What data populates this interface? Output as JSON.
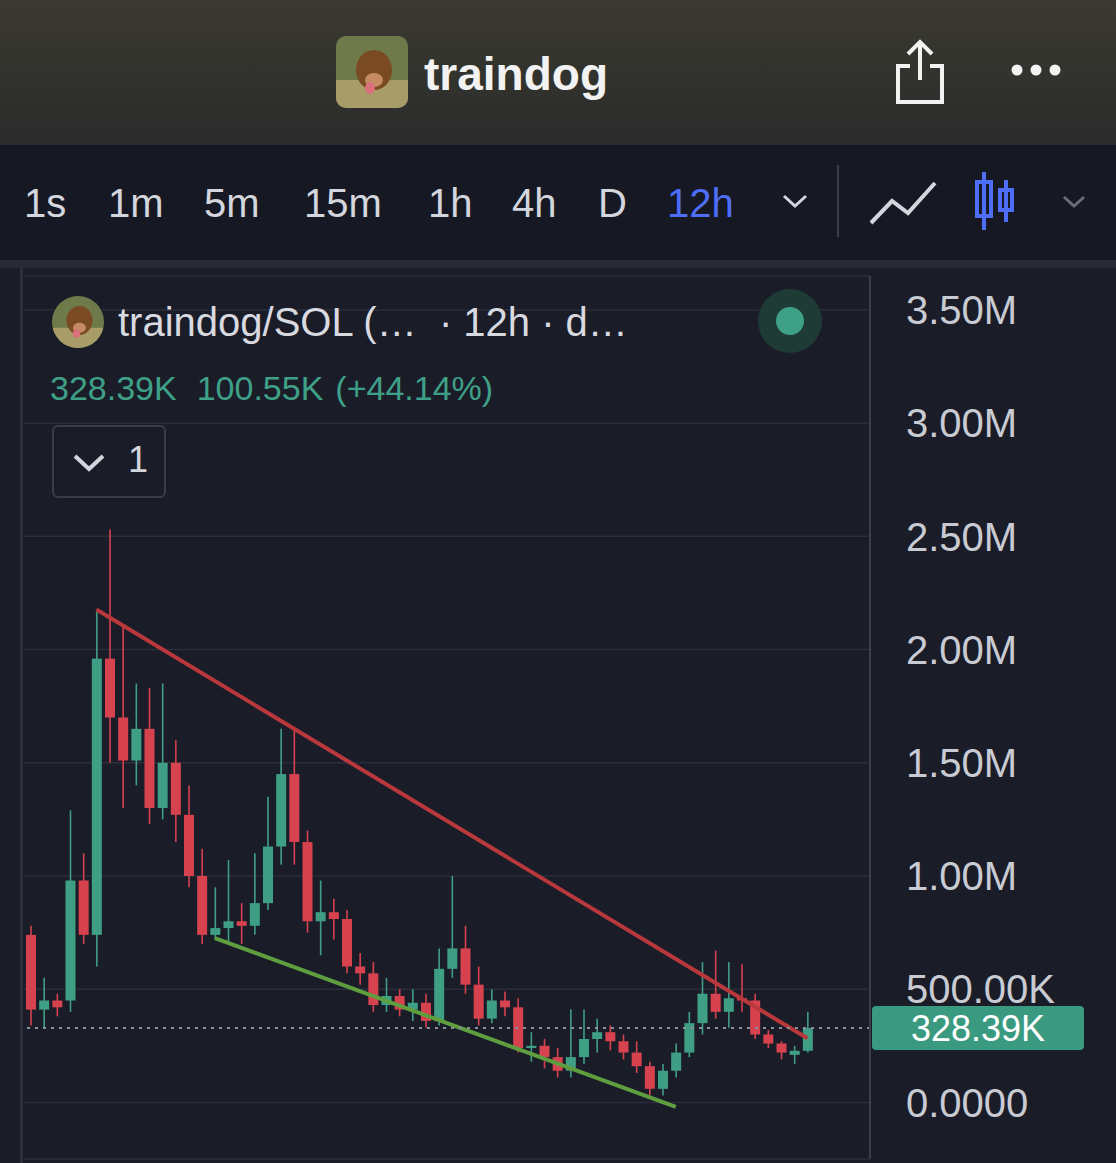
{
  "header": {
    "title": "traindog"
  },
  "timeframes": {
    "items": [
      "1s",
      "1m",
      "5m",
      "15m",
      "1h",
      "4h",
      "D",
      "12h"
    ],
    "selected": "12h"
  },
  "chart_data": {
    "type": "candlestick",
    "title": "traindog/SOL (…  · 12h · d…",
    "legend_values": [
      "328.39K",
      "100.55K",
      "(+44.14%)"
    ],
    "panel_toggle": "1",
    "categories": [
      null,
      null,
      null,
      null,
      null,
      null,
      null,
      null,
      null,
      null,
      null,
      null,
      null,
      null,
      null,
      null,
      null,
      null,
      null,
      null,
      null,
      null,
      null,
      null,
      null,
      null,
      null,
      null,
      null,
      null,
      null,
      null,
      null,
      null,
      null,
      null,
      null,
      null,
      null,
      null,
      null,
      null,
      null,
      null,
      null,
      null,
      null,
      null,
      null,
      null,
      null,
      null,
      null,
      null,
      null,
      null,
      null,
      null,
      null,
      null
    ],
    "open": [
      740000,
      410000,
      450000,
      450000,
      980000,
      740000,
      1960000,
      1700000,
      1510000,
      1650000,
      1300000,
      1500000,
      1270000,
      1000000,
      740000,
      770000,
      800000,
      780000,
      880000,
      1130000,
      1450000,
      1150000,
      800000,
      840000,
      810000,
      600000,
      570000,
      430000,
      470000,
      410000,
      440000,
      360000,
      590000,
      680000,
      520000,
      370000,
      450000,
      420000,
      240000,
      250000,
      200000,
      140000,
      200000,
      280000,
      310000,
      270000,
      220000,
      160000,
      60000,
      140000,
      220000,
      350000,
      480000,
      400000,
      460000,
      450000,
      300000,
      260000,
      210000,
      227840
    ],
    "high": [
      780000,
      550000,
      480000,
      1290000,
      1100000,
      2170000,
      2530000,
      2100000,
      1850000,
      1830000,
      1850000,
      1600000,
      1400000,
      1120000,
      950000,
      1070000,
      880000,
      1100000,
      1350000,
      1650000,
      1650000,
      1200000,
      980000,
      900000,
      850000,
      660000,
      620000,
      550000,
      500000,
      500000,
      480000,
      680000,
      1000000,
      780000,
      600000,
      500000,
      490000,
      460000,
      310000,
      280000,
      240000,
      410000,
      410000,
      370000,
      340000,
      300000,
      270000,
      180000,
      170000,
      260000,
      400000,
      620000,
      670000,
      620000,
      610000,
      480000,
      320000,
      270000,
      250000,
      400000
    ],
    "low": [
      340000,
      330000,
      380000,
      400000,
      700000,
      600000,
      1500000,
      1300000,
      1400000,
      1230000,
      1250000,
      1150000,
      950000,
      700000,
      720000,
      700000,
      700000,
      740000,
      850000,
      1050000,
      1050000,
      750000,
      650000,
      720000,
      570000,
      520000,
      400000,
      400000,
      380000,
      360000,
      330000,
      340000,
      550000,
      480000,
      340000,
      350000,
      380000,
      220000,
      180000,
      150000,
      110000,
      110000,
      170000,
      220000,
      230000,
      190000,
      130000,
      30000,
      30000,
      110000,
      200000,
      300000,
      370000,
      330000,
      400000,
      280000,
      240000,
      190000,
      170000,
      220000
    ],
    "close": [
      410000,
      450000,
      420000,
      980000,
      740000,
      1960000,
      1700000,
      1510000,
      1650000,
      1300000,
      1500000,
      1270000,
      1000000,
      740000,
      770000,
      800000,
      780000,
      880000,
      1130000,
      1450000,
      1150000,
      800000,
      840000,
      810000,
      600000,
      570000,
      430000,
      470000,
      410000,
      440000,
      360000,
      590000,
      680000,
      520000,
      370000,
      450000,
      420000,
      240000,
      250000,
      200000,
      140000,
      200000,
      280000,
      310000,
      270000,
      220000,
      160000,
      60000,
      140000,
      220000,
      350000,
      480000,
      400000,
      460000,
      450000,
      300000,
      260000,
      220000,
      227840,
      328390
    ],
    "colors": [
      "#d6424e",
      "#3f9f85",
      "#d6424e",
      "#3f9f85",
      "#d6424e",
      "#3f9f85",
      "#d6424e",
      "#d6424e",
      "#3f9f85",
      "#d6424e",
      "#3f9f85",
      "#d6424e",
      "#d6424e",
      "#d6424e",
      "#3f9f85",
      "#3f9f85",
      "#d6424e",
      "#3f9f85",
      "#3f9f85",
      "#3f9f85",
      "#d6424e",
      "#d6424e",
      "#3f9f85",
      "#d6424e",
      "#d6424e",
      "#d6424e",
      "#d6424e",
      "#3f9f85",
      "#d6424e",
      "#3f9f85",
      "#d6424e",
      "#3f9f85",
      "#3f9f85",
      "#d6424e",
      "#d6424e",
      "#3f9f85",
      "#d6424e",
      "#d6424e",
      "#3f9f85",
      "#d6424e",
      "#d6424e",
      "#3f9f85",
      "#3f9f85",
      "#3f9f85",
      "#d6424e",
      "#d6424e",
      "#d6424e",
      "#d6424e",
      "#3f9f85",
      "#3f9f85",
      "#3f9f85",
      "#3f9f85",
      "#d6424e",
      "#3f9f85",
      "#d6424e",
      "#d6424e",
      "#d6424e",
      "#d6424e",
      "#3f9f85",
      "#3f9f85"
    ],
    "ylim": [
      -250000,
      3650000
    ],
    "yticks": [
      {
        "value": 0,
        "label": "0.0000"
      },
      {
        "value": 500000,
        "label": "500.00K"
      },
      {
        "value": 1000000,
        "label": "1.00M"
      },
      {
        "value": 1500000,
        "label": "1.50M"
      },
      {
        "value": 2000000,
        "label": "2.00M"
      },
      {
        "value": 2500000,
        "label": "2.50M"
      },
      {
        "value": 3000000,
        "label": "3.00M"
      },
      {
        "value": 3500000,
        "label": "3.50M"
      }
    ],
    "grid": true,
    "tick_labels": "y",
    "price_line": {
      "value": 328390,
      "label": "328.39K"
    },
    "trendlines": [
      {
        "color": "#b8383c",
        "points": [
          [
            5,
            2177000
          ],
          [
            59,
            283000
          ]
        ]
      },
      {
        "color": "#5e9e3f",
        "points": [
          [
            14,
            726000
          ],
          [
            49,
            -20000
          ]
        ]
      }
    ]
  }
}
